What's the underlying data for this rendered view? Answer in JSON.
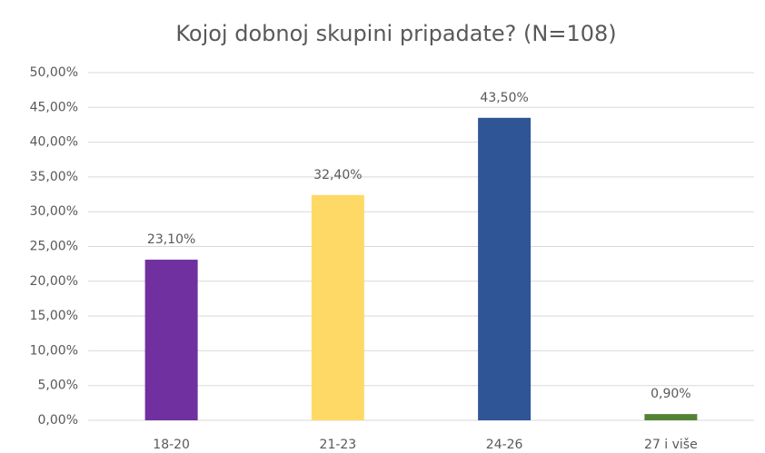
{
  "chart_data": {
    "type": "bar",
    "title": "Kojoj dobnoj skupini pripadate? (N=108)",
    "categories": [
      "18-20",
      "21-23",
      "24-26",
      "27 i više"
    ],
    "values": [
      23.1,
      32.4,
      43.5,
      0.9
    ],
    "value_labels": [
      "23,10%",
      "32,40%",
      "43,50%",
      "0,90%"
    ],
    "colors": [
      "#7030a0",
      "#ffd966",
      "#2f5597",
      "#548235"
    ],
    "ylim": [
      0,
      50
    ],
    "yticks": [
      {
        "value": 0,
        "label": "0,00%"
      },
      {
        "value": 5,
        "label": "5,00%"
      },
      {
        "value": 10,
        "label": "10,00%"
      },
      {
        "value": 15,
        "label": "15,00%"
      },
      {
        "value": 20,
        "label": "20,00%"
      },
      {
        "value": 25,
        "label": "25,00%"
      },
      {
        "value": 30,
        "label": "30,00%"
      },
      {
        "value": 35,
        "label": "35,00%"
      },
      {
        "value": 40,
        "label": "40,00%"
      },
      {
        "value": 45,
        "label": "45,00%"
      },
      {
        "value": 50,
        "label": "50,00%"
      }
    ],
    "grid": true
  }
}
